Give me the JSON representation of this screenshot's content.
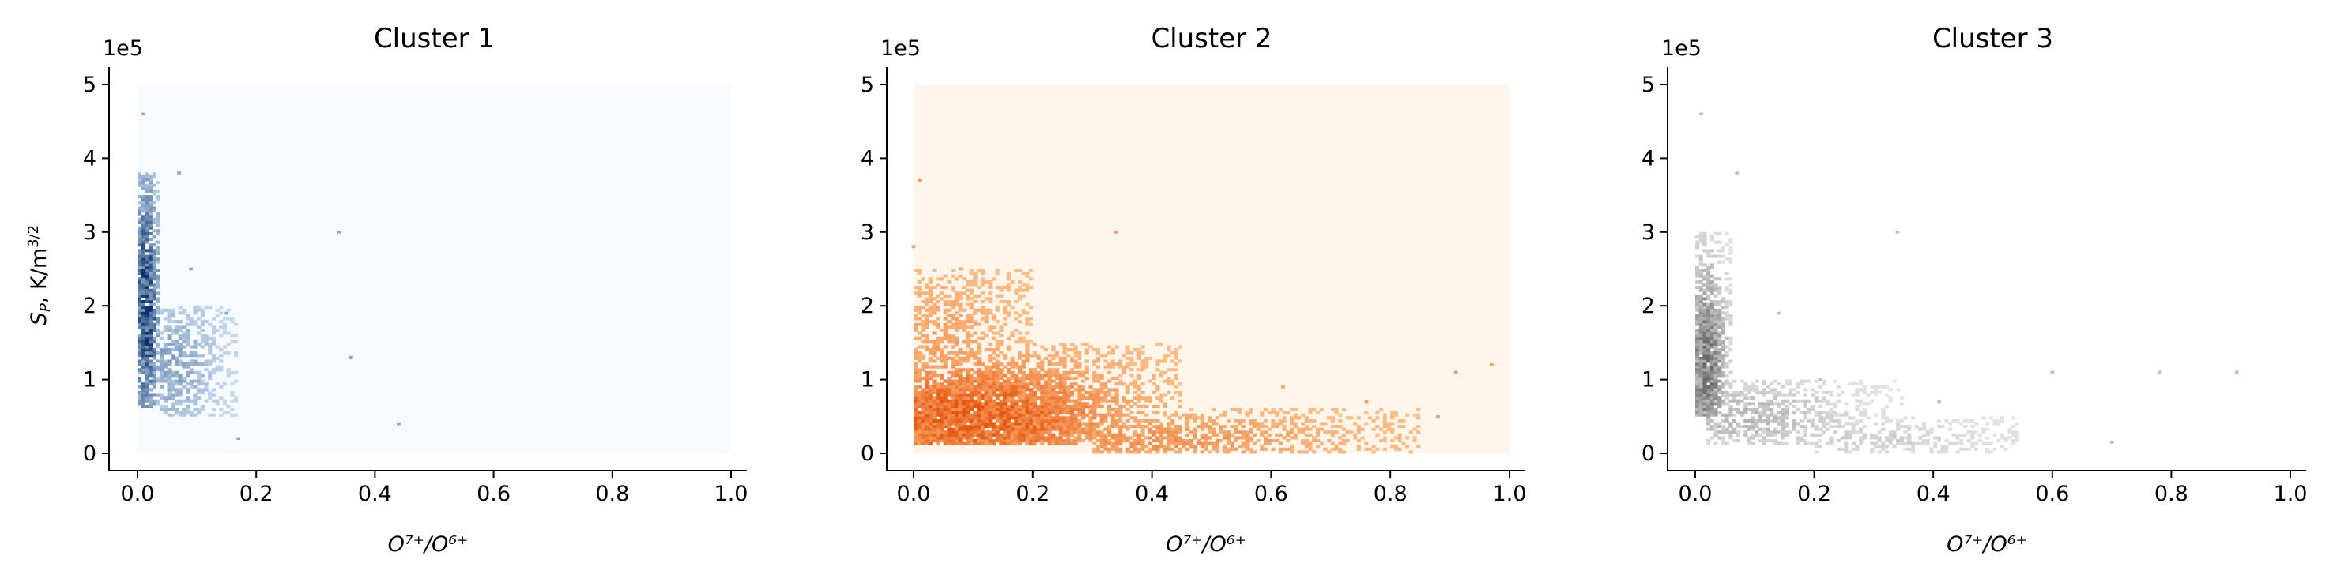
{
  "chart_data": [
    {
      "type": "heatmap",
      "title": "Cluster 1",
      "xlabel": "O⁷⁺/O⁶⁺",
      "ylabel_main": "S",
      "ylabel_sub": "P",
      "ylabel_rest": ", K/m",
      "ylabel_sup": "3/2",
      "offset_label": "1e5",
      "xlim": [
        0,
        1.0
      ],
      "ylim": [
        0,
        5
      ],
      "x_ticks": [
        0,
        0.2,
        0.4,
        0.6,
        0.8,
        1.0
      ],
      "x_tick_labels": [
        "0.0",
        "0.2",
        "0.4",
        "0.6",
        "0.8",
        "1.0"
      ],
      "y_ticks": [
        0,
        1,
        2,
        3,
        4,
        5
      ],
      "y_tick_labels": [
        "0",
        "1",
        "2",
        "3",
        "4",
        "5"
      ],
      "colormap": {
        "background": "#f7fbff",
        "low": "#c6dbef",
        "high": "#08306b"
      },
      "regions": [
        {
          "x": [
            0.0,
            0.04
          ],
          "y": [
            0.6,
            3.8
          ],
          "peak": [
            0.015,
            2.0
          ],
          "intensity": 1.0
        },
        {
          "x": [
            0.04,
            0.17
          ],
          "y": [
            0.5,
            2.0
          ],
          "peak": [
            0.06,
            1.2
          ],
          "intensity": 0.35
        }
      ],
      "isolated_points": [
        [
          0.01,
          4.6
        ],
        [
          0.07,
          3.8
        ],
        [
          0.34,
          3.0
        ],
        [
          0.36,
          1.3
        ],
        [
          0.44,
          0.4
        ],
        [
          0.17,
          0.2
        ],
        [
          0.15,
          1.9
        ],
        [
          0.09,
          2.5
        ]
      ]
    },
    {
      "type": "heatmap",
      "title": "Cluster 2",
      "xlabel": "O⁷⁺/O⁶⁺",
      "offset_label": "1e5",
      "xlim": [
        0,
        1.0
      ],
      "ylim": [
        0,
        5
      ],
      "x_ticks": [
        0,
        0.2,
        0.4,
        0.6,
        0.8,
        1.0
      ],
      "x_tick_labels": [
        "0.0",
        "0.2",
        "0.4",
        "0.6",
        "0.8",
        "1.0"
      ],
      "y_ticks": [
        0,
        1,
        2,
        3,
        4,
        5
      ],
      "y_tick_labels": [
        "0",
        "1",
        "2",
        "3",
        "4",
        "5"
      ],
      "colormap": {
        "background": "#fff5eb",
        "low": "#fdbe85",
        "high": "#e6550d"
      },
      "regions": [
        {
          "x": [
            0.0,
            0.45
          ],
          "y": [
            0.1,
            1.5
          ],
          "peak": [
            0.1,
            0.5
          ],
          "intensity": 1.0
        },
        {
          "x": [
            0.3,
            0.85
          ],
          "y": [
            0.0,
            0.6
          ],
          "peak": [
            0.4,
            0.2
          ],
          "intensity": 0.45
        },
        {
          "x": [
            0.0,
            0.2
          ],
          "y": [
            1.0,
            2.5
          ],
          "peak": [
            0.05,
            1.5
          ],
          "intensity": 0.3
        }
      ],
      "isolated_points": [
        [
          0.01,
          3.7
        ],
        [
          0.34,
          3.0
        ],
        [
          0.91,
          1.1
        ],
        [
          0.97,
          1.2
        ],
        [
          0.76,
          0.7
        ],
        [
          0.88,
          0.5
        ],
        [
          0.62,
          0.9
        ],
        [
          0.08,
          2.5
        ],
        [
          0.0,
          2.8
        ]
      ]
    },
    {
      "type": "heatmap",
      "title": "Cluster 3",
      "xlabel": "O⁷⁺/O⁶⁺",
      "offset_label": "1e5",
      "xlim": [
        0,
        1.0
      ],
      "ylim": [
        0,
        5
      ],
      "x_ticks": [
        0,
        0.2,
        0.4,
        0.6,
        0.8,
        1.0
      ],
      "x_tick_labels": [
        "0.0",
        "0.2",
        "0.4",
        "0.6",
        "0.8",
        "1.0"
      ],
      "y_ticks": [
        0,
        1,
        2,
        3,
        4,
        5
      ],
      "y_tick_labels": [
        "0",
        "1",
        "2",
        "3",
        "4",
        "5"
      ],
      "colormap": {
        "background": "#ffffff",
        "low": "#e5e5e5",
        "high": "#6a6a6a"
      },
      "regions": [
        {
          "x": [
            0.0,
            0.06
          ],
          "y": [
            0.5,
            3.0
          ],
          "peak": [
            0.02,
            1.2
          ],
          "intensity": 1.0
        },
        {
          "x": [
            0.02,
            0.35
          ],
          "y": [
            0.1,
            1.0
          ],
          "peak": [
            0.08,
            0.5
          ],
          "intensity": 0.4
        },
        {
          "x": [
            0.2,
            0.55
          ],
          "y": [
            0.0,
            0.5
          ],
          "peak": [
            0.3,
            0.2
          ],
          "intensity": 0.2
        }
      ],
      "isolated_points": [
        [
          0.01,
          4.6
        ],
        [
          0.07,
          3.8
        ],
        [
          0.34,
          3.0
        ],
        [
          0.91,
          1.1
        ],
        [
          0.6,
          1.1
        ],
        [
          0.78,
          1.1
        ],
        [
          0.21,
          1.0
        ],
        [
          0.41,
          0.7
        ],
        [
          0.7,
          0.15
        ],
        [
          0.14,
          1.9
        ]
      ]
    }
  ]
}
